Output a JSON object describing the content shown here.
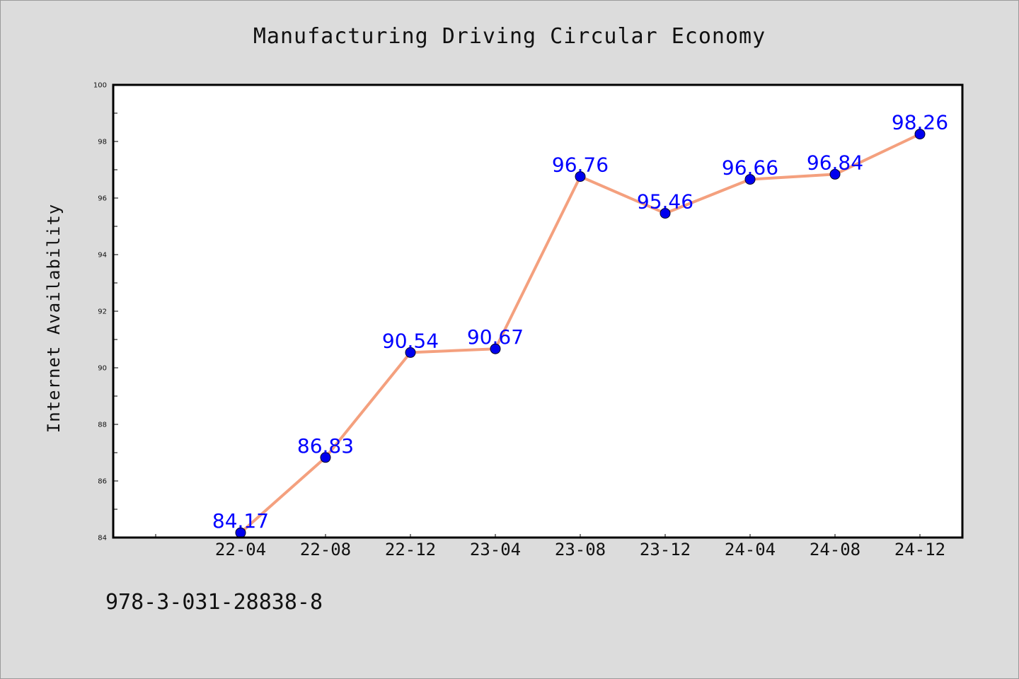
{
  "footer_text": "978-3-031-28838-8",
  "chart_data": {
    "type": "line",
    "title": "Manufacturing Driving Circular Economy",
    "xlabel": "",
    "ylabel": "Internet Availability",
    "categories": [
      "22-04",
      "22-08",
      "22-12",
      "23-04",
      "23-08",
      "23-12",
      "24-04",
      "24-08",
      "24-12"
    ],
    "series": [
      {
        "values": [
          84.17,
          86.83,
          90.54,
          90.67,
          96.76,
          95.46,
          96.66,
          96.84,
          98.26
        ]
      }
    ],
    "ylim": [
      84,
      100
    ],
    "yticks": [
      84,
      86,
      88,
      90,
      92,
      94,
      96,
      98,
      100
    ],
    "grid": false,
    "legend": "none",
    "data_labels": true,
    "colors": {
      "line": "#f4a07e",
      "marker": "#0000ee",
      "label": "#0000ff",
      "background": "#dcdcdc",
      "plot": "#ffffff"
    }
  }
}
